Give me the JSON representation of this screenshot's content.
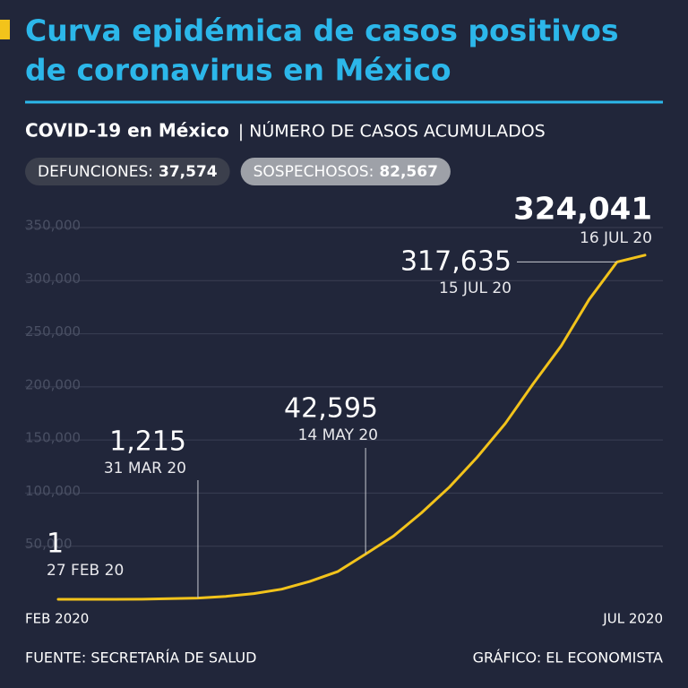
{
  "chart_data": {
    "type": "line",
    "title": [
      "Curva epidémica de casos positivos",
      "de coronavirus en México"
    ],
    "subtitle_bold": "COVID-19 en México",
    "subtitle": "| NÚMERO DE CASOS ACUMULADOS",
    "stats": [
      {
        "label": "DEFUNCIONES:",
        "value": "37,574"
      },
      {
        "label": "SOSPECHOSOS:",
        "value": "82,567"
      }
    ],
    "categories": [
      "FEB 2020",
      null,
      null,
      null,
      null,
      null,
      null,
      null,
      null,
      null,
      null,
      null,
      null,
      null,
      null,
      null,
      null,
      null,
      null,
      null,
      null,
      "JUL 2020"
    ],
    "series": [
      {
        "name": "Casos acumulados",
        "color": "#f2c31b",
        "values": [
          1,
          5,
          15,
          118,
          585,
          1215,
          2785,
          5399,
          9501,
          16752,
          26025,
          42595,
          59567,
          81400,
          105680,
          133974,
          165455,
          202951,
          238511,
          282283,
          317635,
          324041
        ]
      }
    ],
    "annotations": [
      {
        "value": 1,
        "label": "1",
        "date": "27 FEB 20"
      },
      {
        "value": 1215,
        "label": "1,215",
        "date": "31 MAR 20"
      },
      {
        "value": 42595,
        "label": "42,595",
        "date": "14 MAY 20"
      },
      {
        "value": 317635,
        "label": "317,635",
        "date": "15 JUL 20"
      },
      {
        "value": 324041,
        "label": "324,041",
        "date": "16 JUL 20"
      }
    ],
    "ylim": [
      0,
      350000
    ],
    "yticks": [
      {
        "value": 50000,
        "label": "50,000"
      },
      {
        "value": 100000,
        "label": "100,000"
      },
      {
        "value": 150000,
        "label": "150,000"
      },
      {
        "value": 200000,
        "label": "200,000"
      },
      {
        "value": 250000,
        "label": "250,000"
      },
      {
        "value": 300000,
        "label": "300,000"
      },
      {
        "value": 350000,
        "label": "350,000"
      }
    ],
    "grid": true,
    "source": "FUENTE: SECRETARÍA DE SALUD",
    "credit": "GRÁFICO: EL ECONOMISTA"
  }
}
